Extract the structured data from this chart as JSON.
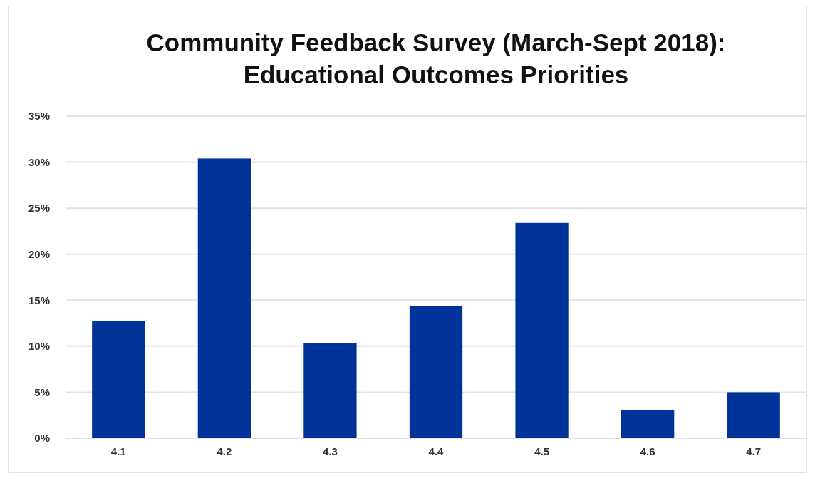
{
  "chart_data": {
    "type": "bar",
    "title": "Community Feedback Survey (March-Sept 2018):\nEducational Outcomes Priorities",
    "categories": [
      "4.1",
      "4.2",
      "4.3",
      "4.4",
      "4.5",
      "4.6",
      "4.7"
    ],
    "values": [
      12.7,
      30.4,
      10.3,
      14.4,
      23.4,
      3.1,
      5.0
    ],
    "color": "#003399",
    "ylim": [
      0,
      35
    ],
    "yticks": [
      {
        "value": 0,
        "label": "0%"
      },
      {
        "value": 5,
        "label": "5%"
      },
      {
        "value": 10,
        "label": "10%"
      },
      {
        "value": 15,
        "label": "15%"
      },
      {
        "value": 20,
        "label": "20%"
      },
      {
        "value": 25,
        "label": "25%"
      },
      {
        "value": 30,
        "label": "30%"
      },
      {
        "value": 35,
        "label": "35%"
      }
    ],
    "grid": "y"
  }
}
